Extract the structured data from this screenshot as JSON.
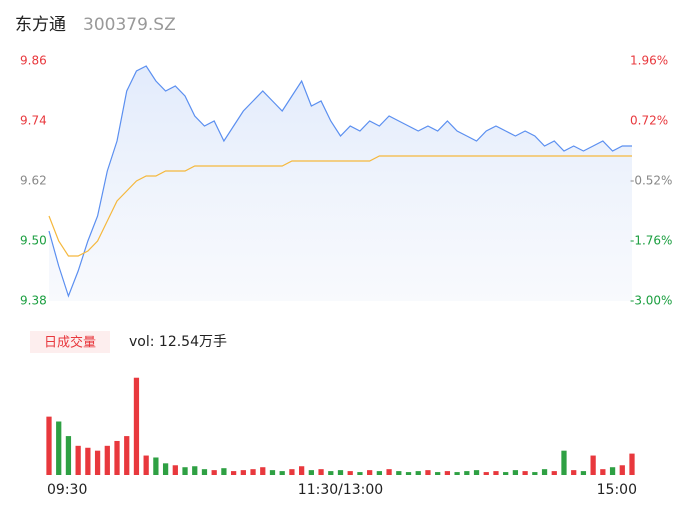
{
  "chart_data": {
    "type": "line",
    "title": "东方通",
    "subtitle": "300379.SZ",
    "categories": [
      "09:30",
      null,
      null,
      null,
      null,
      null,
      null,
      null,
      null,
      null,
      null,
      null,
      null,
      null,
      null,
      null,
      null,
      null,
      null,
      null,
      null,
      null,
      null,
      null,
      null,
      null,
      null,
      null,
      null,
      null,
      "11:30/13:00",
      null,
      null,
      null,
      null,
      null,
      null,
      null,
      null,
      null,
      null,
      null,
      null,
      null,
      null,
      null,
      null,
      null,
      null,
      null,
      null,
      null,
      null,
      null,
      null,
      null,
      null,
      null,
      null,
      null,
      "15:00"
    ],
    "series": [
      {
        "color": "#5b8ff0",
        "values": [
          9.52,
          9.45,
          9.39,
          9.44,
          9.5,
          9.55,
          9.64,
          9.7,
          9.8,
          9.84,
          9.85,
          9.82,
          9.8,
          9.81,
          9.79,
          9.75,
          9.73,
          9.74,
          9.7,
          9.73,
          9.76,
          9.78,
          9.8,
          9.78,
          9.76,
          9.79,
          9.82,
          9.77,
          9.78,
          9.74,
          9.71,
          9.73,
          9.72,
          9.74,
          9.73,
          9.75,
          9.74,
          9.73,
          9.72,
          9.73,
          9.72,
          9.74,
          9.72,
          9.71,
          9.7,
          9.72,
          9.73,
          9.72,
          9.71,
          9.72,
          9.71,
          9.69,
          9.7,
          9.68,
          9.69,
          9.68,
          9.69,
          9.7,
          9.68,
          9.69,
          9.69
        ]
      },
      {
        "color": "#f5b83d",
        "values": [
          9.55,
          9.5,
          9.47,
          9.47,
          9.48,
          9.5,
          9.54,
          9.58,
          9.6,
          9.62,
          9.63,
          9.63,
          9.64,
          9.64,
          9.64,
          9.65,
          9.65,
          9.65,
          9.65,
          9.65,
          9.65,
          9.65,
          9.65,
          9.65,
          9.65,
          9.66,
          9.66,
          9.66,
          9.66,
          9.66,
          9.66,
          9.66,
          9.66,
          9.66,
          9.67,
          9.67,
          9.67,
          9.67,
          9.67,
          9.67,
          9.67,
          9.67,
          9.67,
          9.67,
          9.67,
          9.67,
          9.67,
          9.67,
          9.67,
          9.67,
          9.67,
          9.67,
          9.67,
          9.67,
          9.67,
          9.67,
          9.67,
          9.67,
          9.67,
          9.67,
          9.67
        ]
      }
    ],
    "ylim": [
      9.38,
      9.86
    ],
    "yticks": [
      9.86,
      9.74,
      9.62,
      {
        "value": 9.5,
        "label": "9.50"
      },
      9.38
    ],
    "y2lim": [
      -3.0,
      1.96
    ],
    "y2ticks": [
      {
        "value": 1.96,
        "label": "1.96%"
      },
      {
        "value": 0.72,
        "label": "0.72%"
      },
      {
        "value": -0.52,
        "label": "-0.52%"
      },
      {
        "value": -1.76,
        "label": "-1.76%"
      },
      {
        "value": -3.0,
        "label": "-3.00%"
      }
    ],
    "tick_colors": [
      "#e8383d",
      "#e8383d",
      "#888888",
      "#1a9e3f",
      "#1a9e3f"
    ],
    "volume": {
      "label": "日成交量",
      "summary": "vol: 12.54万手",
      "values": [
        60,
        55,
        40,
        30,
        28,
        25,
        30,
        35,
        40,
        100,
        20,
        18,
        12,
        10,
        8,
        9,
        6,
        5,
        7,
        4,
        5,
        6,
        8,
        5,
        4,
        6,
        9,
        5,
        6,
        4,
        5,
        4,
        3,
        5,
        4,
        6,
        4,
        3,
        4,
        5,
        3,
        4,
        3,
        4,
        5,
        3,
        4,
        3,
        5,
        4,
        3,
        6,
        4,
        25,
        5,
        4,
        20,
        6,
        8,
        10,
        22
      ],
      "ylim": [
        0,
        110
      ],
      "up_color": "#e8383d",
      "down_color": "#2ea043"
    }
  }
}
